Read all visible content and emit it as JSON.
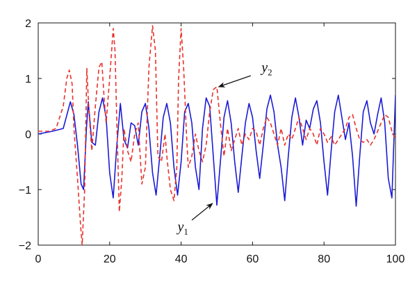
{
  "chart_data": {
    "type": "line",
    "title": "",
    "xlabel": "",
    "ylabel": "",
    "xlim": [
      0,
      100
    ],
    "ylim": [
      -2,
      2
    ],
    "xticks": [
      "0",
      "20",
      "40",
      "60",
      "80",
      "100"
    ],
    "yticks": [
      "−2",
      "−1",
      "0",
      "1",
      "2"
    ],
    "grid": false,
    "legend": "none",
    "series": [
      {
        "key": "y1",
        "color": "#1a1ad6",
        "dash": "solid",
        "points": [
          [
            0,
            0.0
          ],
          [
            4,
            0.05
          ],
          [
            7,
            0.1
          ],
          [
            9,
            0.58
          ],
          [
            10,
            0.35
          ],
          [
            11,
            -0.2
          ],
          [
            12,
            -0.9
          ],
          [
            12.7,
            -1.0
          ],
          [
            13.5,
            0.1
          ],
          [
            14,
            0.58
          ],
          [
            15,
            -0.15
          ],
          [
            16,
            -0.2
          ],
          [
            17,
            0.4
          ],
          [
            18,
            0.65
          ],
          [
            19,
            0.3
          ],
          [
            20,
            -0.7
          ],
          [
            21,
            -1.15
          ],
          [
            22,
            -0.2
          ],
          [
            23,
            0.55
          ],
          [
            24,
            -0.1
          ],
          [
            25,
            -0.25
          ],
          [
            26,
            0.2
          ],
          [
            27,
            0.15
          ],
          [
            28,
            -0.2
          ],
          [
            29,
            0.4
          ],
          [
            30,
            0.55
          ],
          [
            31,
            0.1
          ],
          [
            32,
            -0.7
          ],
          [
            33,
            -1.1
          ],
          [
            34,
            -0.4
          ],
          [
            35,
            0.3
          ],
          [
            36,
            0.55
          ],
          [
            37,
            0.2
          ],
          [
            38,
            -0.6
          ],
          [
            39,
            -1.1
          ],
          [
            40,
            -0.5
          ],
          [
            41,
            0.4
          ],
          [
            42,
            0.55
          ],
          [
            43,
            0.2
          ],
          [
            44,
            -0.6
          ],
          [
            45,
            -1.0
          ],
          [
            46,
            0.1
          ],
          [
            47,
            0.65
          ],
          [
            48,
            0.5
          ],
          [
            49,
            -0.4
          ],
          [
            50,
            -1.28
          ],
          [
            51,
            -0.5
          ],
          [
            52,
            0.3
          ],
          [
            53,
            0.6
          ],
          [
            54,
            0.2
          ],
          [
            55,
            -0.5
          ],
          [
            56,
            -1.05
          ],
          [
            57,
            -0.4
          ],
          [
            58,
            0.2
          ],
          [
            59,
            0.55
          ],
          [
            60,
            0.3
          ],
          [
            61,
            -0.3
          ],
          [
            62,
            -0.8
          ],
          [
            63,
            -0.2
          ],
          [
            64,
            0.45
          ],
          [
            65,
            0.7
          ],
          [
            66,
            0.4
          ],
          [
            67,
            -0.2
          ],
          [
            68,
            -0.6
          ],
          [
            69,
            -1.2
          ],
          [
            70,
            -0.4
          ],
          [
            71,
            0.3
          ],
          [
            72,
            0.65
          ],
          [
            73,
            0.3
          ],
          [
            74,
            -0.2
          ],
          [
            75,
            0.25
          ],
          [
            76,
            0.1
          ],
          [
            77,
            0.45
          ],
          [
            78,
            0.6
          ],
          [
            79,
            0.2
          ],
          [
            80,
            -0.5
          ],
          [
            81,
            -1.1
          ],
          [
            82,
            -0.3
          ],
          [
            83,
            0.4
          ],
          [
            84,
            0.7
          ],
          [
            85,
            0.3
          ],
          [
            86,
            -0.1
          ],
          [
            87,
            0.2
          ],
          [
            88,
            -0.4
          ],
          [
            89,
            -1.3
          ],
          [
            90,
            -0.4
          ],
          [
            91,
            0.4
          ],
          [
            92,
            0.6
          ],
          [
            93,
            0.2
          ],
          [
            94,
            0.0
          ],
          [
            95,
            0.35
          ],
          [
            96,
            0.65
          ],
          [
            97,
            0.2
          ],
          [
            98,
            -0.8
          ],
          [
            99,
            -1.15
          ],
          [
            100,
            0.7
          ]
        ]
      },
      {
        "key": "y2",
        "color": "#e8302a",
        "dash": "dashed",
        "points": [
          [
            0,
            0.05
          ],
          [
            3,
            0.05
          ],
          [
            5,
            0.1
          ],
          [
            7,
            0.5
          ],
          [
            8,
            1.0
          ],
          [
            8.7,
            1.15
          ],
          [
            9.5,
            0.9
          ],
          [
            10,
            0.1
          ],
          [
            11,
            -0.8
          ],
          [
            11.8,
            -1.6
          ],
          [
            12.3,
            -2.0
          ],
          [
            13,
            -1.0
          ],
          [
            13.6,
            1.18
          ],
          [
            14.2,
            0.4
          ],
          [
            15,
            -0.3
          ],
          [
            16,
            0.5
          ],
          [
            17,
            1.2
          ],
          [
            17.8,
            1.3
          ],
          [
            18.5,
            0.6
          ],
          [
            19,
            0.2
          ],
          [
            20,
            1.0
          ],
          [
            21,
            1.9
          ],
          [
            21.5,
            1.5
          ],
          [
            22,
            0.2
          ],
          [
            22.7,
            -1.4
          ],
          [
            23.4,
            -0.8
          ],
          [
            24,
            0.1
          ],
          [
            25,
            -0.3
          ],
          [
            26,
            -0.5
          ],
          [
            27,
            0.0
          ],
          [
            28,
            0.2
          ],
          [
            29,
            -0.9
          ],
          [
            30,
            -0.6
          ],
          [
            31,
            1.2
          ],
          [
            32,
            1.95
          ],
          [
            32.8,
            1.5
          ],
          [
            33.5,
            -0.4
          ],
          [
            34.5,
            -0.5
          ],
          [
            35.5,
            0.0
          ],
          [
            36,
            -0.4
          ],
          [
            37,
            -1.0
          ],
          [
            38,
            -1.2
          ],
          [
            38.8,
            -0.6
          ],
          [
            39.3,
            1.0
          ],
          [
            40,
            1.9
          ],
          [
            40.7,
            1.2
          ],
          [
            41.5,
            0.0
          ],
          [
            42,
            -0.6
          ],
          [
            43,
            -0.4
          ],
          [
            44,
            0.0
          ],
          [
            45,
            -0.3
          ],
          [
            46,
            -0.5
          ],
          [
            47,
            -0.2
          ],
          [
            48,
            0.4
          ],
          [
            49,
            0.8
          ],
          [
            50,
            0.85
          ],
          [
            51,
            0.2
          ],
          [
            52,
            -0.4
          ],
          [
            53,
            0.1
          ],
          [
            54,
            -0.3
          ],
          [
            55,
            -0.1
          ],
          [
            56,
            0.1
          ],
          [
            57,
            -0.2
          ],
          [
            58,
            0.0
          ],
          [
            59,
            -0.1
          ],
          [
            60,
            0.1
          ],
          [
            61,
            0.05
          ],
          [
            62,
            -0.2
          ],
          [
            63,
            0.1
          ],
          [
            64,
            0.3
          ],
          [
            65,
            0.2
          ],
          [
            66,
            0.0
          ],
          [
            67,
            -0.2
          ],
          [
            68,
            0.1
          ],
          [
            69,
            -0.2
          ],
          [
            70,
            0.0
          ],
          [
            71,
            -0.1
          ],
          [
            72,
            0.1
          ],
          [
            73,
            0.3
          ],
          [
            74,
            0.1
          ],
          [
            75,
            -0.1
          ],
          [
            76,
            0.1
          ],
          [
            77,
            0.0
          ],
          [
            78,
            -0.2
          ],
          [
            79,
            0.1
          ],
          [
            80,
            0.0
          ],
          [
            81,
            -0.15
          ],
          [
            82,
            -0.05
          ],
          [
            83,
            -0.2
          ],
          [
            84,
            -0.1
          ],
          [
            85,
            0.0
          ],
          [
            86,
            0.1
          ],
          [
            87,
            0.3
          ],
          [
            88,
            0.35
          ],
          [
            89,
            0.1
          ],
          [
            90,
            -0.1
          ],
          [
            91,
            -0.15
          ],
          [
            92,
            -0.1
          ],
          [
            93,
            -0.2
          ],
          [
            94,
            -0.1
          ],
          [
            95,
            0.05
          ],
          [
            96,
            0.2
          ],
          [
            97,
            0.35
          ],
          [
            98,
            0.3
          ],
          [
            99,
            0.05
          ],
          [
            100,
            -0.1
          ]
        ]
      }
    ],
    "annotations": [
      {
        "key": "y2",
        "letter": "y",
        "sub": "2",
        "label_x": 62.5,
        "label_y": 1.12,
        "arrow_from": [
          59.5,
          1.05
        ],
        "arrow_to": [
          50.5,
          0.85
        ]
      },
      {
        "key": "y1",
        "letter": "y",
        "sub": "1",
        "label_x": 39.0,
        "label_y": -1.75,
        "arrow_from": [
          43.0,
          -1.55
        ],
        "arrow_to": [
          48.8,
          -1.25
        ]
      }
    ]
  }
}
